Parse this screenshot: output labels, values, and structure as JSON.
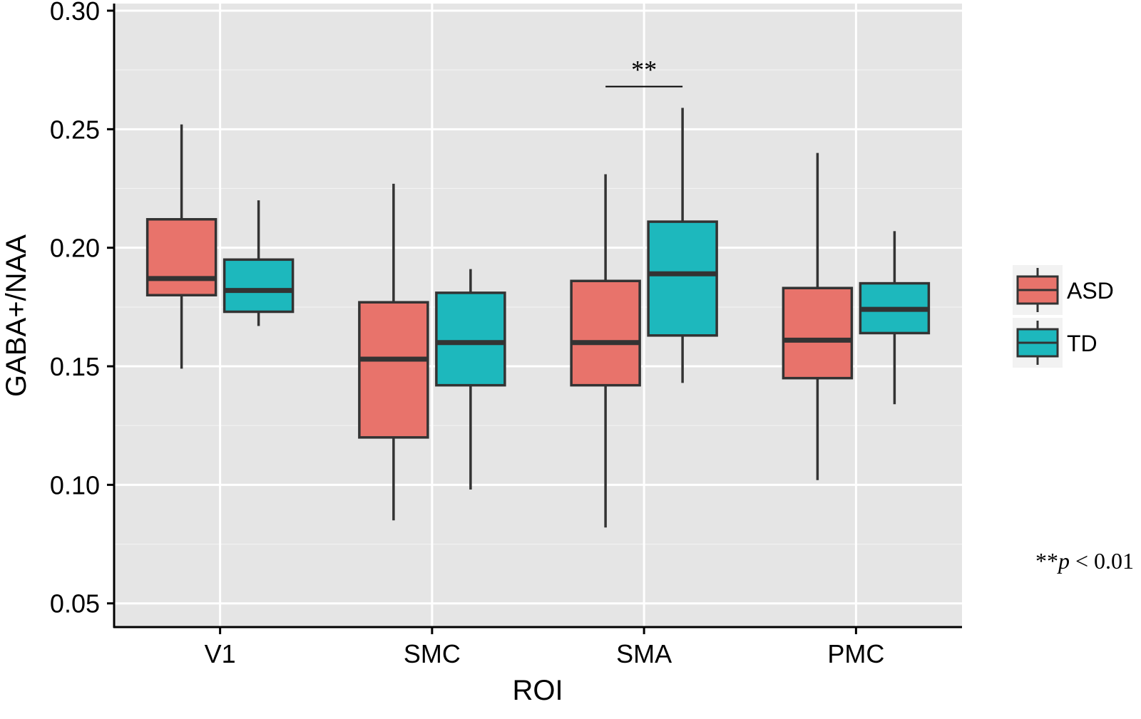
{
  "chart_data": {
    "type": "boxplot",
    "xlabel": "ROI",
    "ylabel": "GABA+/NAA",
    "ylim": [
      0.04,
      0.303
    ],
    "yticks": [
      0.05,
      0.1,
      0.15,
      0.2,
      0.25,
      0.3
    ],
    "ytick_labels": [
      "0.05",
      "0.10",
      "0.15",
      "0.20",
      "0.25",
      "0.30"
    ],
    "categories": [
      "V1",
      "SMC",
      "SMA",
      "PMC"
    ],
    "grid": true,
    "legend_position": "right",
    "series": [
      {
        "name": "ASD",
        "color": "#E8736B",
        "boxes": [
          {
            "category": "V1",
            "min": 0.149,
            "q1": 0.18,
            "median": 0.187,
            "q3": 0.212,
            "max": 0.252
          },
          {
            "category": "SMC",
            "min": 0.085,
            "q1": 0.12,
            "median": 0.153,
            "q3": 0.177,
            "max": 0.227
          },
          {
            "category": "SMA",
            "min": 0.082,
            "q1": 0.142,
            "median": 0.16,
            "q3": 0.186,
            "max": 0.231
          },
          {
            "category": "PMC",
            "min": 0.102,
            "q1": 0.145,
            "median": 0.161,
            "q3": 0.183,
            "max": 0.24
          }
        ]
      },
      {
        "name": "TD",
        "color": "#1DB8BD",
        "boxes": [
          {
            "category": "V1",
            "min": 0.167,
            "q1": 0.173,
            "median": 0.182,
            "q3": 0.195,
            "max": 0.22
          },
          {
            "category": "SMC",
            "min": 0.098,
            "q1": 0.142,
            "median": 0.16,
            "q3": 0.181,
            "max": 0.191
          },
          {
            "category": "SMA",
            "min": 0.143,
            "q1": 0.163,
            "median": 0.189,
            "q3": 0.211,
            "max": 0.259
          },
          {
            "category": "PMC",
            "min": 0.134,
            "q1": 0.164,
            "median": 0.174,
            "q3": 0.185,
            "max": 0.207
          }
        ]
      }
    ],
    "annotations": [
      {
        "category": "SMA",
        "text": "**",
        "y": 0.268
      }
    ],
    "note": {
      "stars": "**",
      "p": "p",
      "rest": " < 0.01"
    }
  }
}
